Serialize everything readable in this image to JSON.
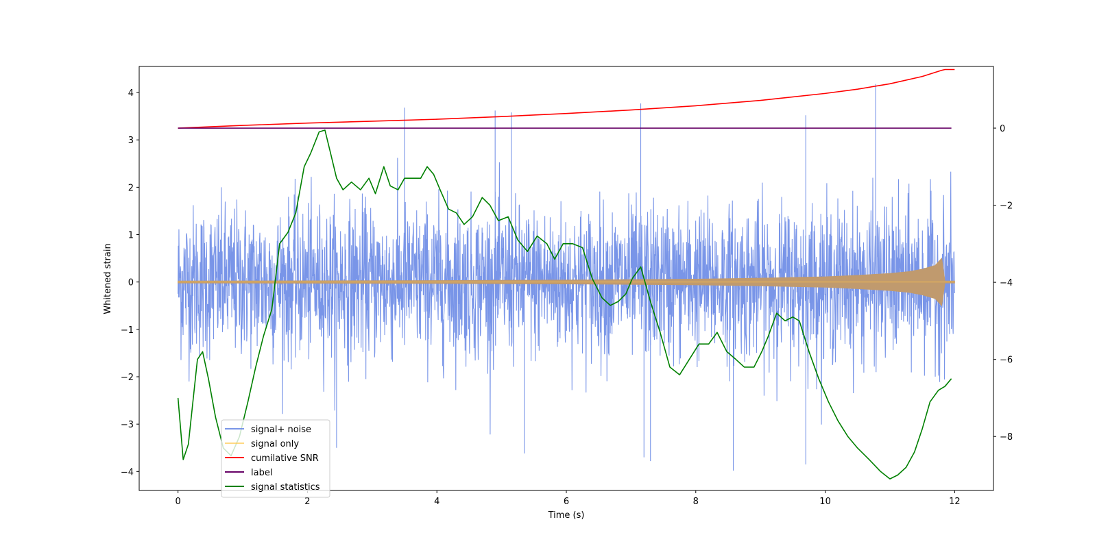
{
  "chart_data": {
    "type": "line",
    "title": "",
    "xlabel": "Time (s)",
    "ylabel": "Whitened strain",
    "ylabel_right": "",
    "xlim": [
      -0.6,
      12.6
    ],
    "ylim": [
      -4.4,
      4.55
    ],
    "ylim_right": [
      -9.4,
      1.6
    ],
    "x_ticks": [
      0,
      2,
      4,
      6,
      8,
      10,
      12
    ],
    "x_tick_labels": [
      "0",
      "2",
      "4",
      "6",
      "8",
      "10",
      "12"
    ],
    "y_ticks": [
      -4,
      -3,
      -2,
      -1,
      0,
      1,
      2,
      3,
      4
    ],
    "y_tick_labels": [
      "−4",
      "−3",
      "−2",
      "−1",
      "0",
      "1",
      "2",
      "3",
      "4"
    ],
    "y_right_ticks": [
      -8,
      -6,
      -4,
      -2,
      0
    ],
    "y_right_tick_labels": [
      "−8",
      "−6",
      "−4",
      "−2",
      "0"
    ],
    "legend_position": "lower-left",
    "series": [
      {
        "name": "signal+ noise",
        "axis": "left",
        "color": "#6a8ae6",
        "description": "white noise, typical amplitude about ±2 with spikes to ±4",
        "spikes": [
          {
            "x": 3.5,
            "y": 3.68
          },
          {
            "x": 4.9,
            "y": 3.62
          },
          {
            "x": 5.15,
            "y": 3.58
          },
          {
            "x": 7.15,
            "y": 3.77
          },
          {
            "x": 9.7,
            "y": 3.52
          },
          {
            "x": 10.78,
            "y": 4.18
          },
          {
            "x": 8.58,
            "y": -3.98
          },
          {
            "x": 9.7,
            "y": -3.85
          },
          {
            "x": 7.3,
            "y": -3.78
          },
          {
            "x": 7.2,
            "y": -3.7
          },
          {
            "x": 2.45,
            "y": -3.5
          },
          {
            "x": 5.35,
            "y": -3.62
          }
        ]
      },
      {
        "name": "signal only",
        "axis": "left",
        "color": "#ffc94d",
        "description": "chirp growing in amplitude",
        "x": [
          0,
          2,
          4,
          6,
          8,
          9,
          10,
          10.5,
          11,
          11.3,
          11.5,
          11.7,
          11.8,
          11.85,
          12
        ],
        "amplitude": [
          0.02,
          0.025,
          0.03,
          0.04,
          0.06,
          0.08,
          0.11,
          0.14,
          0.18,
          0.22,
          0.27,
          0.35,
          0.5,
          0.02,
          0.02
        ]
      },
      {
        "name": "cumilative SNR",
        "axis": "right",
        "color": "#ff0000",
        "x": [
          0,
          1,
          2,
          3,
          4,
          5,
          6,
          7,
          8,
          9,
          10,
          10.5,
          11,
          11.5,
          11.8,
          11.85,
          12
        ],
        "values": [
          0.0,
          0.07,
          0.13,
          0.18,
          0.23,
          0.3,
          0.38,
          0.47,
          0.58,
          0.72,
          0.9,
          1.01,
          1.15,
          1.34,
          1.5,
          1.52,
          1.52
        ]
      },
      {
        "name": "label",
        "axis": "right",
        "color": "#660066",
        "x": [
          0,
          11.95
        ],
        "values": [
          0,
          0
        ]
      },
      {
        "name": "signal statistics",
        "axis": "right",
        "color": "#008000",
        "x": [
          0,
          0.08,
          0.16,
          0.23,
          0.3,
          0.38,
          0.47,
          0.58,
          0.7,
          0.82,
          0.95,
          1.08,
          1.2,
          1.32,
          1.45,
          1.57,
          1.7,
          1.82,
          1.95,
          2.05,
          2.18,
          2.27,
          2.35,
          2.45,
          2.55,
          2.68,
          2.82,
          2.95,
          3.05,
          3.18,
          3.28,
          3.4,
          3.5,
          3.62,
          3.75,
          3.85,
          3.95,
          4.05,
          4.18,
          4.3,
          4.42,
          4.55,
          4.7,
          4.82,
          4.95,
          5.1,
          5.25,
          5.4,
          5.55,
          5.7,
          5.82,
          5.95,
          6.1,
          6.25,
          6.4,
          6.55,
          6.68,
          6.8,
          6.92,
          7.02,
          7.15,
          7.3,
          7.45,
          7.6,
          7.75,
          7.9,
          8.05,
          8.2,
          8.33,
          8.48,
          8.62,
          8.75,
          8.9,
          9.02,
          9.12,
          9.25,
          9.38,
          9.5,
          9.6,
          9.75,
          9.9,
          10.05,
          10.2,
          10.35,
          10.5,
          10.68,
          10.85,
          11.0,
          11.12,
          11.25,
          11.38,
          11.5,
          11.62,
          11.75,
          11.85,
          11.95
        ],
        "values": [
          -7.0,
          -8.6,
          -8.2,
          -7.1,
          -6.0,
          -5.8,
          -6.5,
          -7.5,
          -8.3,
          -8.5,
          -8.0,
          -7.1,
          -6.2,
          -5.4,
          -4.7,
          -3.0,
          -2.7,
          -2.2,
          -1.0,
          -0.65,
          -0.1,
          -0.05,
          -0.6,
          -1.3,
          -1.6,
          -1.4,
          -1.6,
          -1.3,
          -1.7,
          -1.0,
          -1.5,
          -1.6,
          -1.3,
          -1.3,
          -1.3,
          -1.0,
          -1.2,
          -1.6,
          -2.1,
          -2.2,
          -2.5,
          -2.3,
          -1.8,
          -2.0,
          -2.4,
          -2.3,
          -2.9,
          -3.2,
          -2.8,
          -3.0,
          -3.4,
          -3.0,
          -3.0,
          -3.1,
          -3.9,
          -4.4,
          -4.6,
          -4.5,
          -4.3,
          -3.9,
          -3.6,
          -4.5,
          -5.3,
          -6.2,
          -6.4,
          -6.0,
          -5.6,
          -5.6,
          -5.3,
          -5.8,
          -6.0,
          -6.2,
          -6.2,
          -5.8,
          -5.4,
          -4.8,
          -5.0,
          -4.9,
          -5.0,
          -5.8,
          -6.5,
          -7.1,
          -7.6,
          -8.0,
          -8.3,
          -8.6,
          -8.9,
          -9.1,
          -9.0,
          -8.8,
          -8.4,
          -7.8,
          -7.1,
          -6.8,
          -6.7,
          -6.5
        ]
      }
    ]
  }
}
